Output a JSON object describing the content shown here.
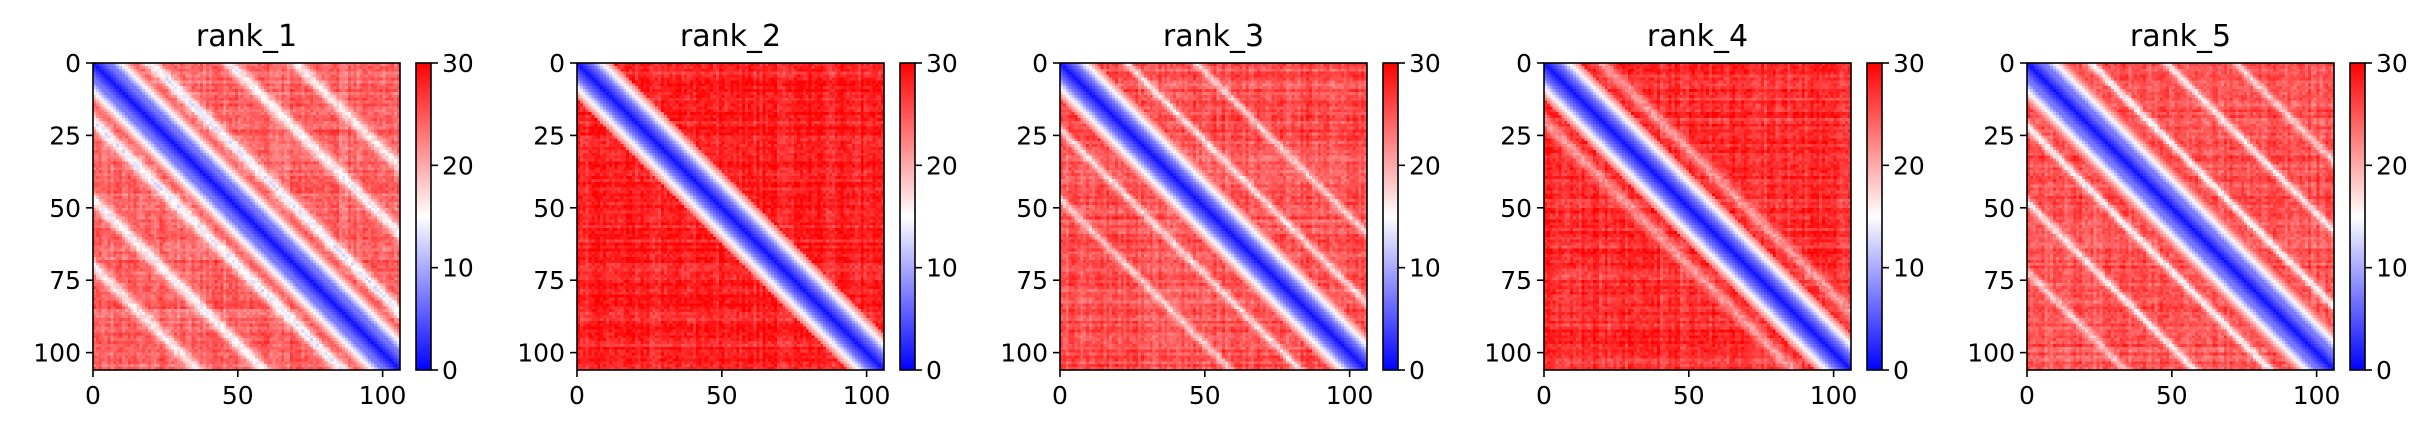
{
  "chart_data": [
    {
      "type": "heatmap",
      "title": "rank_1",
      "xlabel": "",
      "ylabel": "",
      "matrix_size": 106,
      "x_ticks": [
        0,
        50,
        100
      ],
      "y_ticks": [
        0,
        25,
        50,
        75,
        100
      ],
      "xlim": [
        0,
        106
      ],
      "ylim": [
        106,
        0
      ],
      "colorbar": {
        "ticks": [
          0,
          10,
          20,
          30
        ],
        "range": [
          0,
          30
        ],
        "colormap": "bwr"
      },
      "pattern": {
        "diag_width": 6,
        "base": 24,
        "bands": [
          {
            "offset": 20,
            "value": 14,
            "width": 3
          },
          {
            "offset": 47,
            "value": 15,
            "width": 3
          },
          {
            "offset": 70,
            "value": 16,
            "width": 3
          }
        ]
      }
    },
    {
      "type": "heatmap",
      "title": "rank_2",
      "xlabel": "",
      "ylabel": "",
      "matrix_size": 106,
      "x_ticks": [
        0,
        50,
        100
      ],
      "y_ticks": [
        0,
        25,
        50,
        75,
        100
      ],
      "xlim": [
        0,
        106
      ],
      "ylim": [
        106,
        0
      ],
      "colorbar": {
        "ticks": [
          0,
          10,
          20,
          30
        ],
        "range": [
          0,
          30
        ],
        "colormap": "bwr"
      },
      "pattern": {
        "diag_width": 5,
        "base": 28,
        "bands": []
      }
    },
    {
      "type": "heatmap",
      "title": "rank_3",
      "xlabel": "",
      "ylabel": "",
      "matrix_size": 106,
      "x_ticks": [
        0,
        50,
        100
      ],
      "y_ticks": [
        0,
        25,
        50,
        75,
        100
      ],
      "xlim": [
        0,
        106
      ],
      "ylim": [
        106,
        0
      ],
      "colorbar": {
        "ticks": [
          0,
          10,
          20,
          30
        ],
        "range": [
          0,
          30
        ],
        "colormap": "bwr"
      },
      "pattern": {
        "diag_width": 5,
        "base": 25,
        "bands": [
          {
            "offset": 23,
            "value": 17,
            "width": 2
          },
          {
            "offset": 47,
            "value": 18,
            "width": 2
          }
        ]
      }
    },
    {
      "type": "heatmap",
      "title": "rank_4",
      "xlabel": "",
      "ylabel": "",
      "matrix_size": 106,
      "x_ticks": [
        0,
        50,
        100
      ],
      "y_ticks": [
        0,
        25,
        50,
        75,
        100
      ],
      "xlim": [
        0,
        106
      ],
      "ylim": [
        106,
        0
      ],
      "colorbar": {
        "ticks": [
          0,
          10,
          20,
          30
        ],
        "range": [
          0,
          30
        ],
        "colormap": "bwr"
      },
      "pattern": {
        "diag_width": 5,
        "base": 27,
        "bands": [
          {
            "offset": 20,
            "value": 21,
            "width": 3
          }
        ]
      }
    },
    {
      "type": "heatmap",
      "title": "rank_5",
      "xlabel": "",
      "ylabel": "",
      "matrix_size": 106,
      "x_ticks": [
        0,
        50,
        100
      ],
      "y_ticks": [
        0,
        25,
        50,
        75,
        100
      ],
      "xlim": [
        0,
        106
      ],
      "ylim": [
        106,
        0
      ],
      "colorbar": {
        "ticks": [
          0,
          10,
          20,
          30
        ],
        "range": [
          0,
          30
        ],
        "colormap": "bwr"
      },
      "pattern": {
        "diag_width": 6,
        "base": 25,
        "bands": [
          {
            "offset": 22,
            "value": 15,
            "width": 2
          },
          {
            "offset": 48,
            "value": 16,
            "width": 2
          },
          {
            "offset": 72,
            "value": 18,
            "width": 2
          }
        ]
      }
    }
  ]
}
